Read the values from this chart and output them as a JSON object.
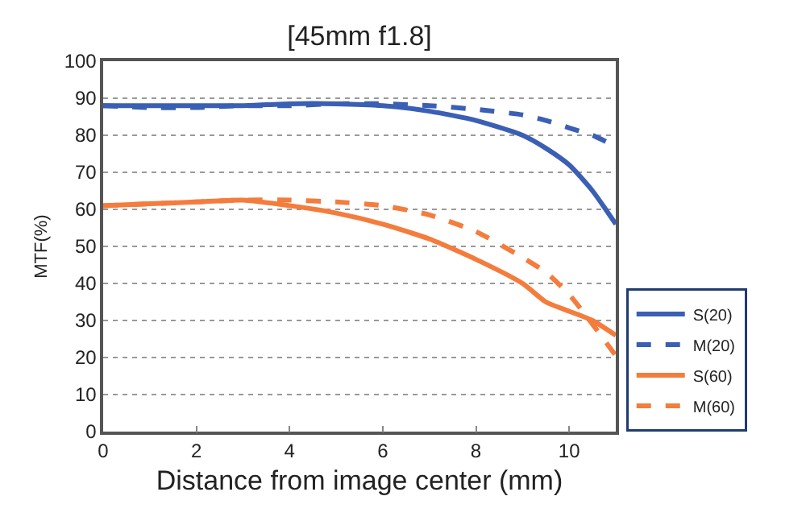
{
  "chart_data": {
    "type": "line",
    "title": "[45mm f1.8]",
    "xlabel": "Distance from image center (mm)",
    "ylabel": "MTF(%)",
    "x": [
      0,
      1,
      2,
      3,
      4,
      5,
      6,
      7,
      8,
      9,
      9.5,
      10,
      10.5,
      11
    ],
    "series": [
      {
        "name": "S(20)",
        "color": "#3a5fb5",
        "line_style": "solid",
        "values": [
          88,
          88,
          88,
          88,
          88.5,
          88.5,
          88,
          86.5,
          84,
          80,
          76.5,
          72,
          65,
          56
        ]
      },
      {
        "name": "M(20)",
        "color": "#3a5fb5",
        "line_style": "dashed",
        "values": [
          88,
          87.5,
          87.5,
          88,
          88,
          88.5,
          88.5,
          88,
          87,
          85.5,
          84,
          82,
          80,
          77
        ]
      },
      {
        "name": "S(60)",
        "color": "#f47c3c",
        "line_style": "solid",
        "values": [
          61,
          61.5,
          62,
          62.5,
          61,
          59,
          56,
          52,
          46.5,
          40,
          35,
          32.5,
          30,
          26
        ]
      },
      {
        "name": "M(60)",
        "color": "#f47c3c",
        "line_style": "dashed",
        "values": [
          61,
          61.5,
          62,
          62.5,
          62.5,
          62,
          61,
          58.5,
          54,
          47,
          43,
          37,
          29,
          20.5
        ]
      }
    ],
    "xlim": [
      0,
      11
    ],
    "xticks": [
      0,
      2,
      4,
      6,
      8,
      10
    ],
    "ylim": [
      0,
      100
    ],
    "yticks": [
      0,
      10,
      20,
      30,
      40,
      50,
      60,
      70,
      80,
      90,
      100
    ],
    "grid": "y",
    "legend": "bottom right",
    "marker": "none"
  }
}
